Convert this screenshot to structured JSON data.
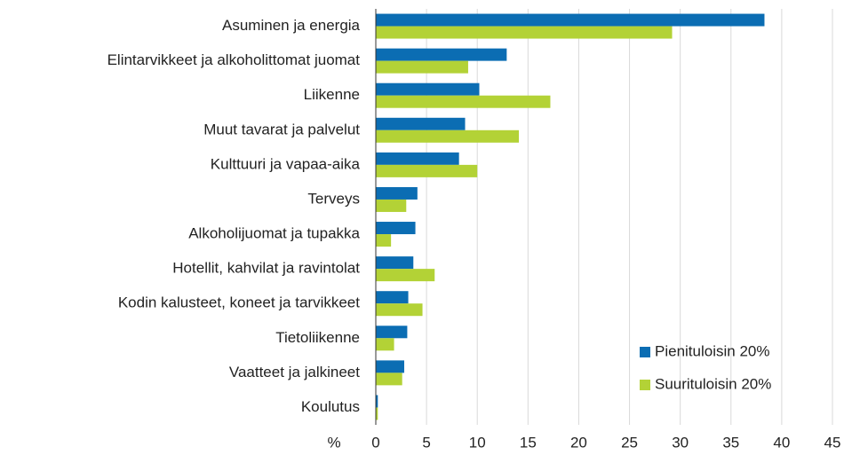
{
  "chart_data": {
    "type": "bar",
    "orientation": "horizontal",
    "x_label": "%",
    "categories": [
      "Asuminen ja energia",
      "Elintarvikkeet ja alkoholittomat juomat",
      "Liikenne",
      "Muut tavarat ja palvelut",
      "Kulttuuri ja vapaa-aika",
      "Terveys",
      "Alkoholijuomat ja tupakka",
      "Hotellit, kahvilat ja ravintolat",
      "Kodin kalusteet, koneet ja tarvikkeet",
      "Tietoliikenne",
      "Vaatteet ja jalkineet",
      "Koulutus"
    ],
    "series": [
      {
        "name": "Pienituloisin 20%",
        "color": "#0b6db3",
        "values": [
          38.3,
          12.9,
          10.2,
          8.8,
          8.2,
          4.1,
          3.9,
          3.7,
          3.2,
          3.1,
          2.8,
          0.2
        ]
      },
      {
        "name": "Suurituloisin 20%",
        "color": "#b3d236",
        "values": [
          29.2,
          9.1,
          17.2,
          14.1,
          10.0,
          3.0,
          1.5,
          5.8,
          4.6,
          1.8,
          2.6,
          0.2
        ]
      }
    ],
    "xlim": [
      0,
      45
    ],
    "xticks": [
      0,
      5,
      10,
      15,
      20,
      25,
      30,
      35,
      40,
      45
    ],
    "grid": true,
    "legend": "lower right"
  }
}
